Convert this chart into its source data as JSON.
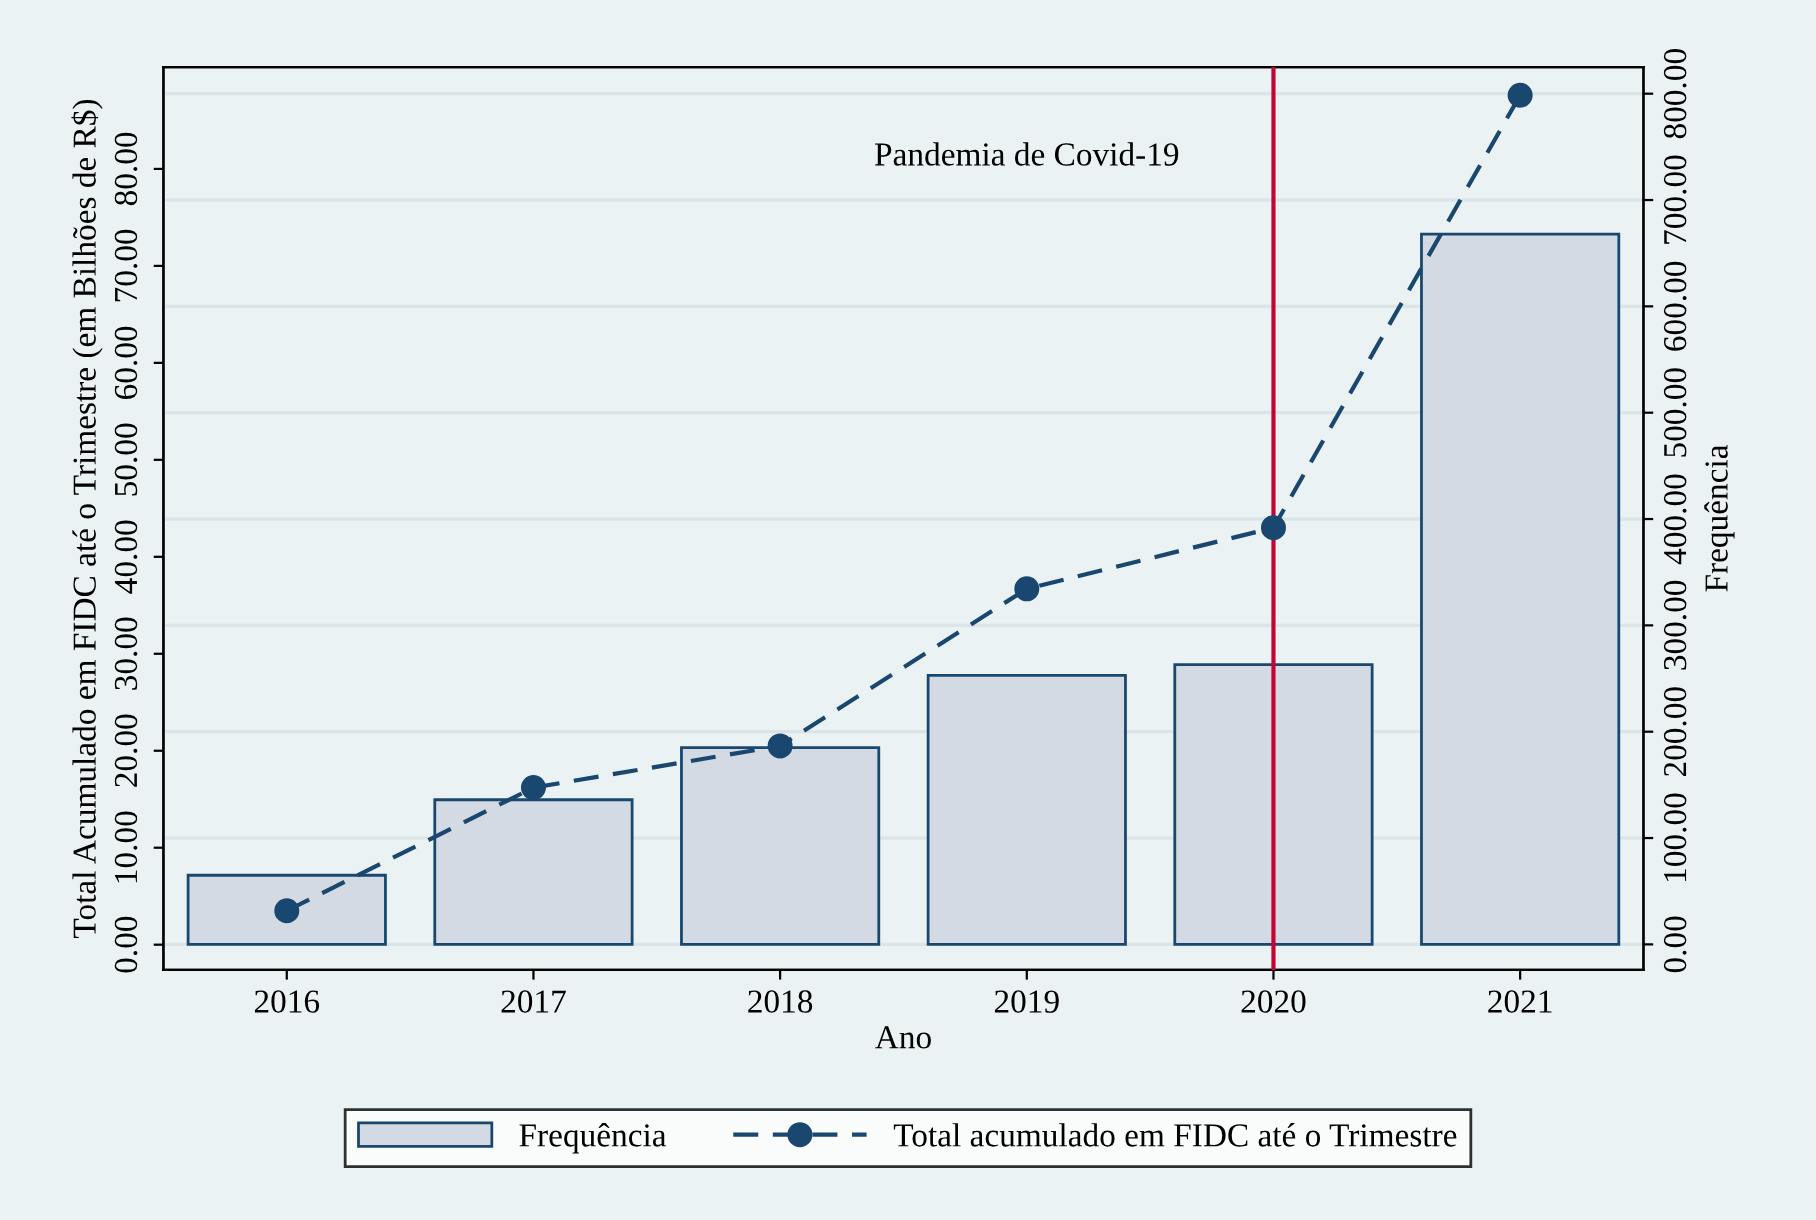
{
  "chart_data": {
    "type": "bar",
    "xlabel": "Ano",
    "ylabel": "Total Acumulado em FIDC até o Trimestre (em Bilhões de R$)",
    "y2label": "Frequência",
    "x": [
      2016,
      2017,
      2018,
      2019,
      2020,
      2021
    ],
    "xlim": [
      2015.5,
      2021.5
    ],
    "xticks": [
      2016,
      2017,
      2018,
      2019,
      2020,
      2021
    ],
    "ylim": [
      -2.6,
      90.5
    ],
    "yticks": [
      {
        "value": 0,
        "label": "0.00"
      },
      {
        "value": 10,
        "label": "10.00"
      },
      {
        "value": 20,
        "label": "20.00"
      },
      {
        "value": 30,
        "label": "30.00"
      },
      {
        "value": 40,
        "label": "40.00"
      },
      {
        "value": 50,
        "label": "50.00"
      },
      {
        "value": 60,
        "label": "60.00"
      },
      {
        "value": 70,
        "label": "70.00"
      },
      {
        "value": 80,
        "label": "80.00"
      }
    ],
    "y2lim": [
      -24,
      825
    ],
    "y2ticks": [
      {
        "value": 0,
        "label": "0.00"
      },
      {
        "value": 100,
        "label": "100.00"
      },
      {
        "value": 200,
        "label": "200.00"
      },
      {
        "value": 300,
        "label": "300.00"
      },
      {
        "value": 400,
        "label": "400.00"
      },
      {
        "value": 500,
        "label": "500.00"
      },
      {
        "value": 600,
        "label": "600.00"
      },
      {
        "value": 700,
        "label": "700.00"
      },
      {
        "value": 800,
        "label": "800.00"
      }
    ],
    "series": [
      {
        "name": "Frequência",
        "axis": "y2",
        "color": "#d3dae3",
        "values": [
          65,
          136,
          185,
          253,
          263,
          668
        ]
      },
      {
        "name": "Total acumulado em FIDC até o Trimestre",
        "type": "line",
        "axis": "y",
        "color": "#1a476f",
        "marker": "circle",
        "line_style": "dashed",
        "values": [
          3.5,
          16.2,
          20.5,
          36.7,
          43.0,
          87.6
        ]
      }
    ],
    "ref_lines": [
      {
        "axis": "x",
        "value": 2020,
        "label": "Pandemia de Covid-19",
        "color": "#c10534"
      }
    ],
    "grid": "y2",
    "legend": "bottom"
  }
}
